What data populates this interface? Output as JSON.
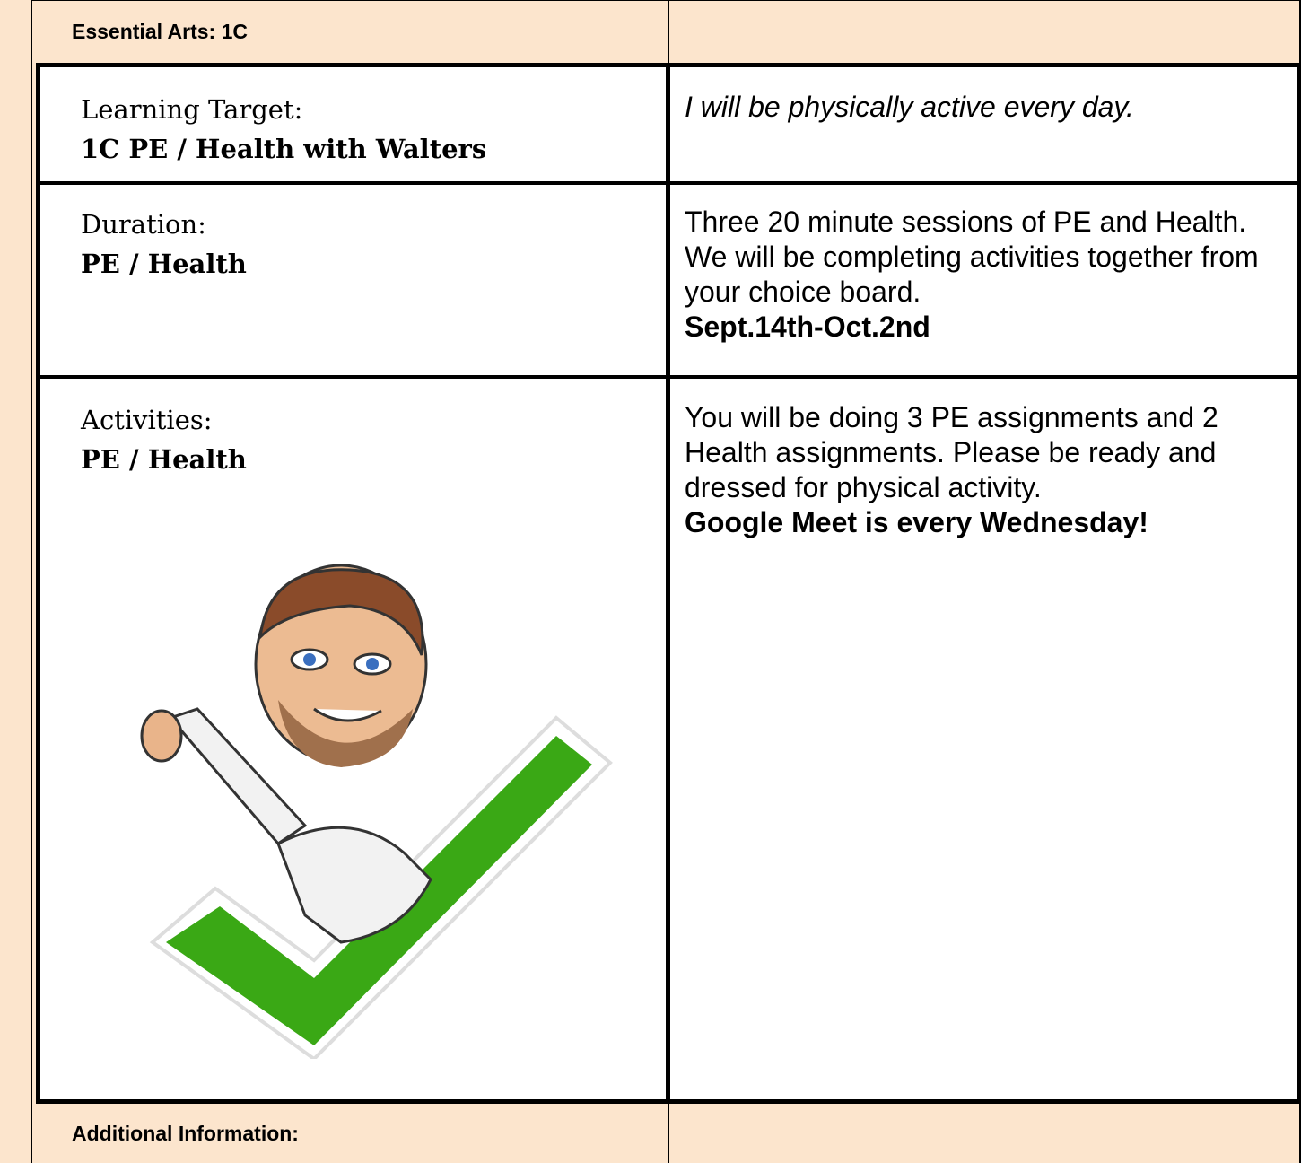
{
  "header": {
    "title": "Essential Arts: 1C"
  },
  "rows": [
    {
      "label": "Learning Target:",
      "heading": "1C PE / Health with Walters",
      "text": "I will be physically active every day."
    },
    {
      "label": "Duration:",
      "heading": "PE / Health",
      "text": "Three 20 minute sessions of PE and Health. We will be completing activities together from your choice board.",
      "bold": "Sept.14th-Oct.2nd"
    },
    {
      "label": "Activities:",
      "heading": "PE / Health",
      "text": "You will be doing 3 PE assignments and 2 Health assignments. Please be ready and dressed for physical activity.",
      "bold": "Google Meet is every Wednesday!"
    }
  ],
  "footer": {
    "title": "Additional Information:"
  }
}
